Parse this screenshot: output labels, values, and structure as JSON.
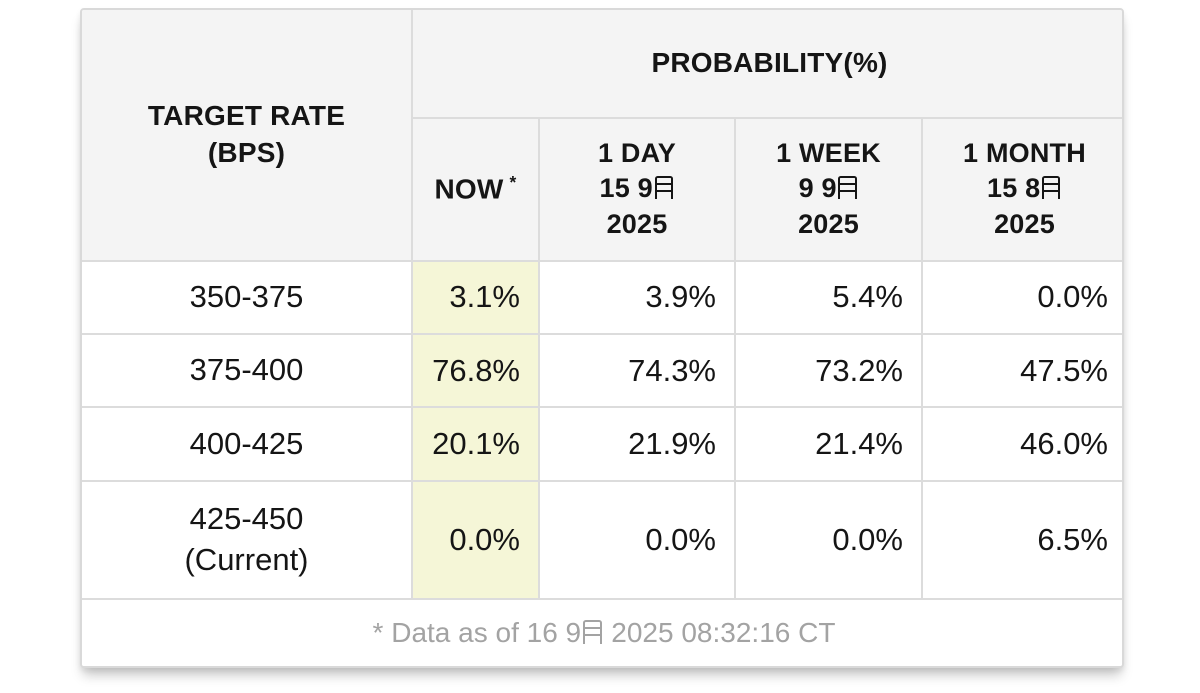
{
  "table": {
    "header": {
      "target_rate_line1": "TARGET RATE",
      "target_rate_line2": "(BPS)",
      "probability_title": "PROBABILITY(%)",
      "now_label": "NOW",
      "now_asterisk": "*",
      "cols": [
        {
          "period": "1 DAY",
          "date": "15 9月",
          "year": "2025"
        },
        {
          "period": "1 WEEK",
          "date": "9 9月",
          "year": "2025"
        },
        {
          "period": "1 MONTH",
          "date": "15 8月",
          "year": "2025"
        }
      ]
    },
    "rows": [
      {
        "label": "350-375",
        "sublabel": "",
        "now": "3.1%",
        "day": "3.9%",
        "week": "5.4%",
        "month": "0.0%"
      },
      {
        "label": "375-400",
        "sublabel": "",
        "now": "76.8%",
        "day": "74.3%",
        "week": "73.2%",
        "month": "47.5%"
      },
      {
        "label": "400-425",
        "sublabel": "",
        "now": "20.1%",
        "day": "21.9%",
        "week": "21.4%",
        "month": "46.0%"
      },
      {
        "label": "425-450",
        "sublabel": "(Current)",
        "now": "0.0%",
        "day": "0.0%",
        "week": "0.0%",
        "month": "6.5%"
      }
    ],
    "footer": {
      "note": "* Data as of 16 9月 2025 08:32:16 CT"
    },
    "colors": {
      "now_highlight": "#f5f6d7",
      "header_bg": "#f4f4f4",
      "border": "#dcdcdc",
      "footer_text": "#a3a3a3"
    }
  }
}
